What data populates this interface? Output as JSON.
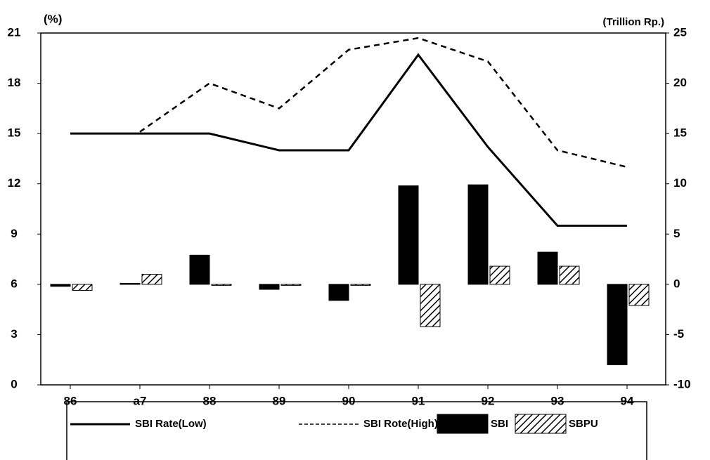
{
  "chart_data": {
    "type": "combo",
    "y_unit": "(%)",
    "y2_unit": "(Trillion Rp.)",
    "categories": [
      "86",
      "a7",
      "88",
      "89",
      "90",
      "91",
      "92",
      "93",
      "94"
    ],
    "ylim": [
      0,
      21
    ],
    "yticks": [
      0,
      3,
      6,
      9,
      12,
      15,
      18,
      21
    ],
    "y2lim": [
      -10,
      25
    ],
    "y2ticks": [
      -10,
      -5,
      0,
      5,
      10,
      15,
      20,
      25
    ],
    "series": [
      {
        "name": "SBI Rate(Low)",
        "kind": "line",
        "style": "solid",
        "color": "#000000",
        "values": [
          15,
          15,
          15,
          14,
          14,
          19.7,
          14.2,
          9.5,
          9.5
        ]
      },
      {
        "name": "SBI Rote(High)",
        "kind": "line",
        "style": "dashed",
        "color": "#000000",
        "values": [
          null,
          15.1,
          18,
          16.5,
          20,
          20.7,
          19.3,
          14,
          13
        ]
      },
      {
        "name": "SBI",
        "kind": "bar",
        "style": "solid",
        "color": "#000000",
        "axis": "y2",
        "values": [
          -0.2,
          0.1,
          2.9,
          -0.5,
          -1.6,
          9.8,
          9.9,
          3.2,
          -8
        ]
      },
      {
        "name": "SBPU",
        "kind": "bar",
        "style": "hatched",
        "color": "#000000",
        "axis": "y2",
        "values": [
          -0.6,
          1,
          0,
          0,
          0,
          -4.2,
          1.8,
          1.8,
          -2.1
        ]
      }
    ]
  }
}
